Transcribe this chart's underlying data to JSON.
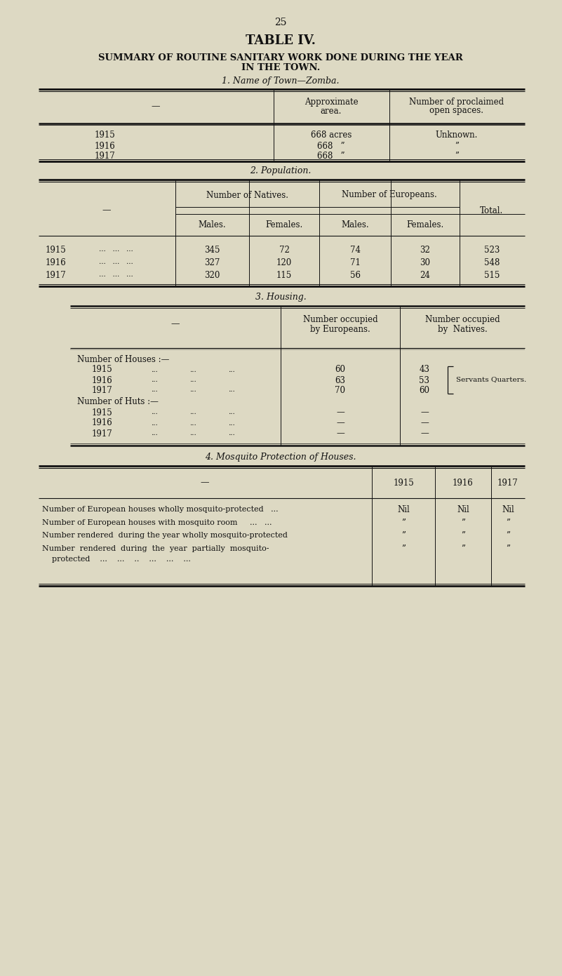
{
  "bg_color": "#ddd9c3",
  "text_color": "#111111",
  "page_number": "25",
  "title": "TABLE IV.",
  "subtitle1": "SUMMARY OF ROUTINE SANITARY WORK DONE DURING THE YEAR",
  "subtitle2": "IN THE TOWN.",
  "s1_title": "1. Name of Town—Zomba.",
  "s2_title": "2. Population.",
  "s3_title": "3. Housing.",
  "s4_title": "4. Mosquito Protection of Houses.",
  "s1_col_header1": "Approximate\narea.",
  "s1_col_header2": "Number of proclaimed\nopen spaces.",
  "s1_years": [
    "1915",
    "1916",
    "1917"
  ],
  "s1_areas": [
    "668 acres",
    "668   ”",
    "668   ”"
  ],
  "s1_spaces": [
    "Unknown.",
    "”",
    "”"
  ],
  "s2_nat_header": "Number of Natives.",
  "s2_eur_header": "Number of Europeans.",
  "s2_total_header": "Total.",
  "s2_col_headers": [
    "Males.",
    "Females.",
    "Males.",
    "Females."
  ],
  "s2_years": [
    "1915",
    "1916",
    "1917"
  ],
  "s2_dots": [
    "...   ...   ...",
    "...   ...   ...",
    "...   ...   ..."
  ],
  "s2_data": [
    [
      345,
      72,
      74,
      32,
      523
    ],
    [
      327,
      120,
      71,
      30,
      548
    ],
    [
      320,
      115,
      56,
      24,
      515
    ]
  ],
  "s3_col_header1": "Number occupied\nby Europeans.",
  "s3_col_header2": "Number occupied\nby  Natives.",
  "s3_houses_label": "Number of Houses :—",
  "s3_houses_years": [
    "1915",
    "1916",
    "1917"
  ],
  "s3_houses_eu": [
    "60",
    "63",
    "70"
  ],
  "s3_houses_na": [
    "43",
    "53",
    "60"
  ],
  "s3_servants": "Servants Quarters.",
  "s3_huts_label": "Number of Huts :—",
  "s3_huts_years": [
    "1915",
    "1916",
    "1917"
  ],
  "s4_col_headers": [
    "1915",
    "1916",
    "1917"
  ],
  "s4_rows": [
    [
      "Number of European houses wholly mosquito-protected   ...",
      "Nil",
      "Nil",
      "Nil"
    ],
    [
      "Number of European houses with mosquito room     ...   ...",
      "”",
      "”",
      "”"
    ],
    [
      "Number rendered  during the year wholly mosquito-protected",
      "”",
      "”",
      "”"
    ],
    [
      "Number  rendered  during  the  year  partially  mosquito-",
      "”",
      "”",
      "”"
    ]
  ],
  "s4_last_line": "    protected    ...    ...    ..    ...    ...    ..."
}
